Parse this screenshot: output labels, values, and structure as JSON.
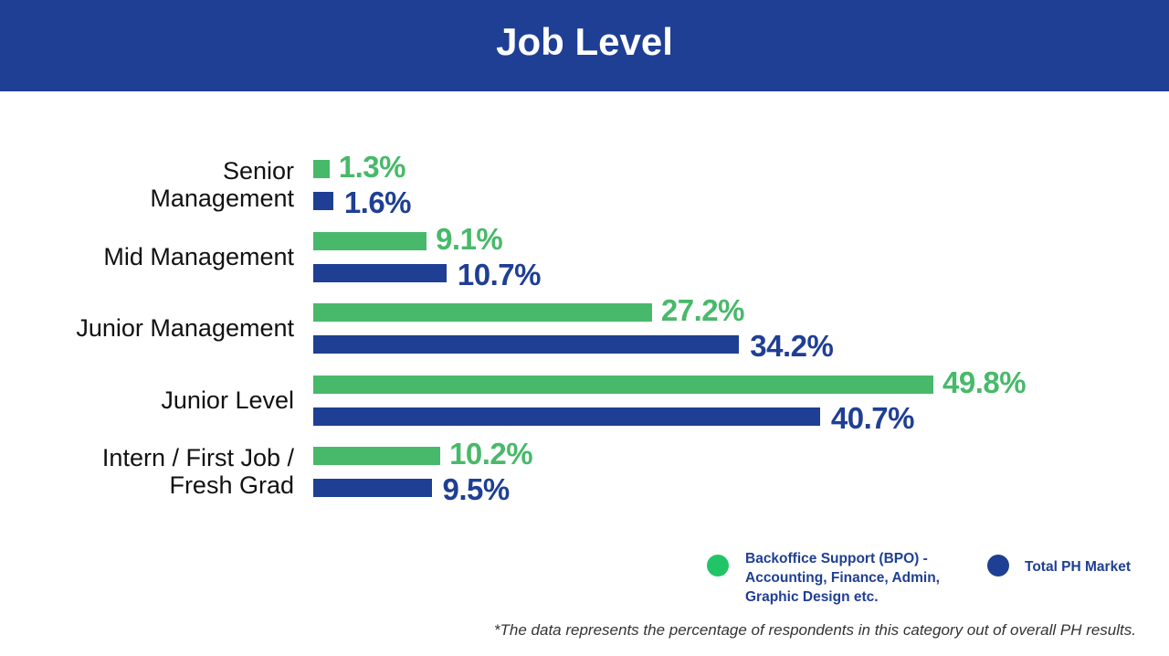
{
  "chart_data": {
    "type": "bar",
    "orientation": "horizontal",
    "title": "Job Level",
    "categories": [
      "Senior Management",
      "Mid Management",
      "Junior Management",
      "Junior Level",
      "Intern / First Job / Fresh Grad"
    ],
    "series": [
      {
        "name": "Backoffice Support (BPO) - Accounting, Finance, Admin, Graphic Design etc.",
        "color": "#48b96a",
        "values": [
          1.3,
          9.1,
          27.2,
          49.8,
          10.2
        ],
        "value_labels": [
          "1.3%",
          "9.1%",
          "27.2%",
          "49.8%",
          "10.2%"
        ]
      },
      {
        "name": "Total PH Market",
        "color": "#1f3f94",
        "values": [
          1.6,
          10.7,
          34.2,
          40.7,
          9.5
        ],
        "value_labels": [
          "1.6%",
          "10.7%",
          "34.2%",
          "40.7%",
          "9.5%"
        ]
      }
    ],
    "footnote": "*The data represents the percentage of respondents in this category out of overall PH results."
  }
}
